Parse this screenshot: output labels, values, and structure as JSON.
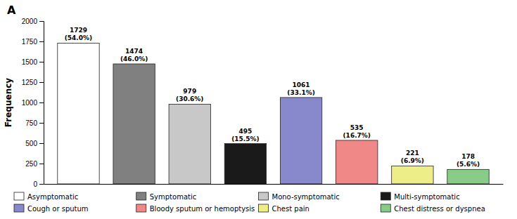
{
  "chart_data": {
    "type": "bar",
    "title": "A",
    "categories": [
      "Asymptomatic",
      "Symptomatic",
      "Mono-symptomatic",
      "Multi-symptomatic",
      "Cough or sputum",
      "Bloody sputum or hemoptysis",
      "Chest pain",
      "Chest distress or dyspnea"
    ],
    "values": [
      1729,
      1474,
      979,
      495,
      1061,
      535,
      221,
      178
    ],
    "value_labels": [
      "1729\n(54.0%)",
      "1474\n(46.0%)",
      "979\n(30.6%)",
      "495\n(15.5%)",
      "1061\n(33.1%)",
      "535\n(16.7%)",
      "221\n(6.9%)",
      "178\n(5.6%)"
    ],
    "colors": [
      "#ffffff",
      "#808080",
      "#c8c8c8",
      "#1a1a1a",
      "#8888cc",
      "#f08888",
      "#eeee88",
      "#88cc88"
    ],
    "y_label": "Frequency",
    "ylim": [
      0,
      2000
    ],
    "yticks": [
      0,
      250,
      500,
      750,
      1000,
      1250,
      1500,
      1750,
      2000
    ],
    "data_labels": true,
    "tick_labels": "y",
    "legend": "bottom",
    "grid": false
  }
}
